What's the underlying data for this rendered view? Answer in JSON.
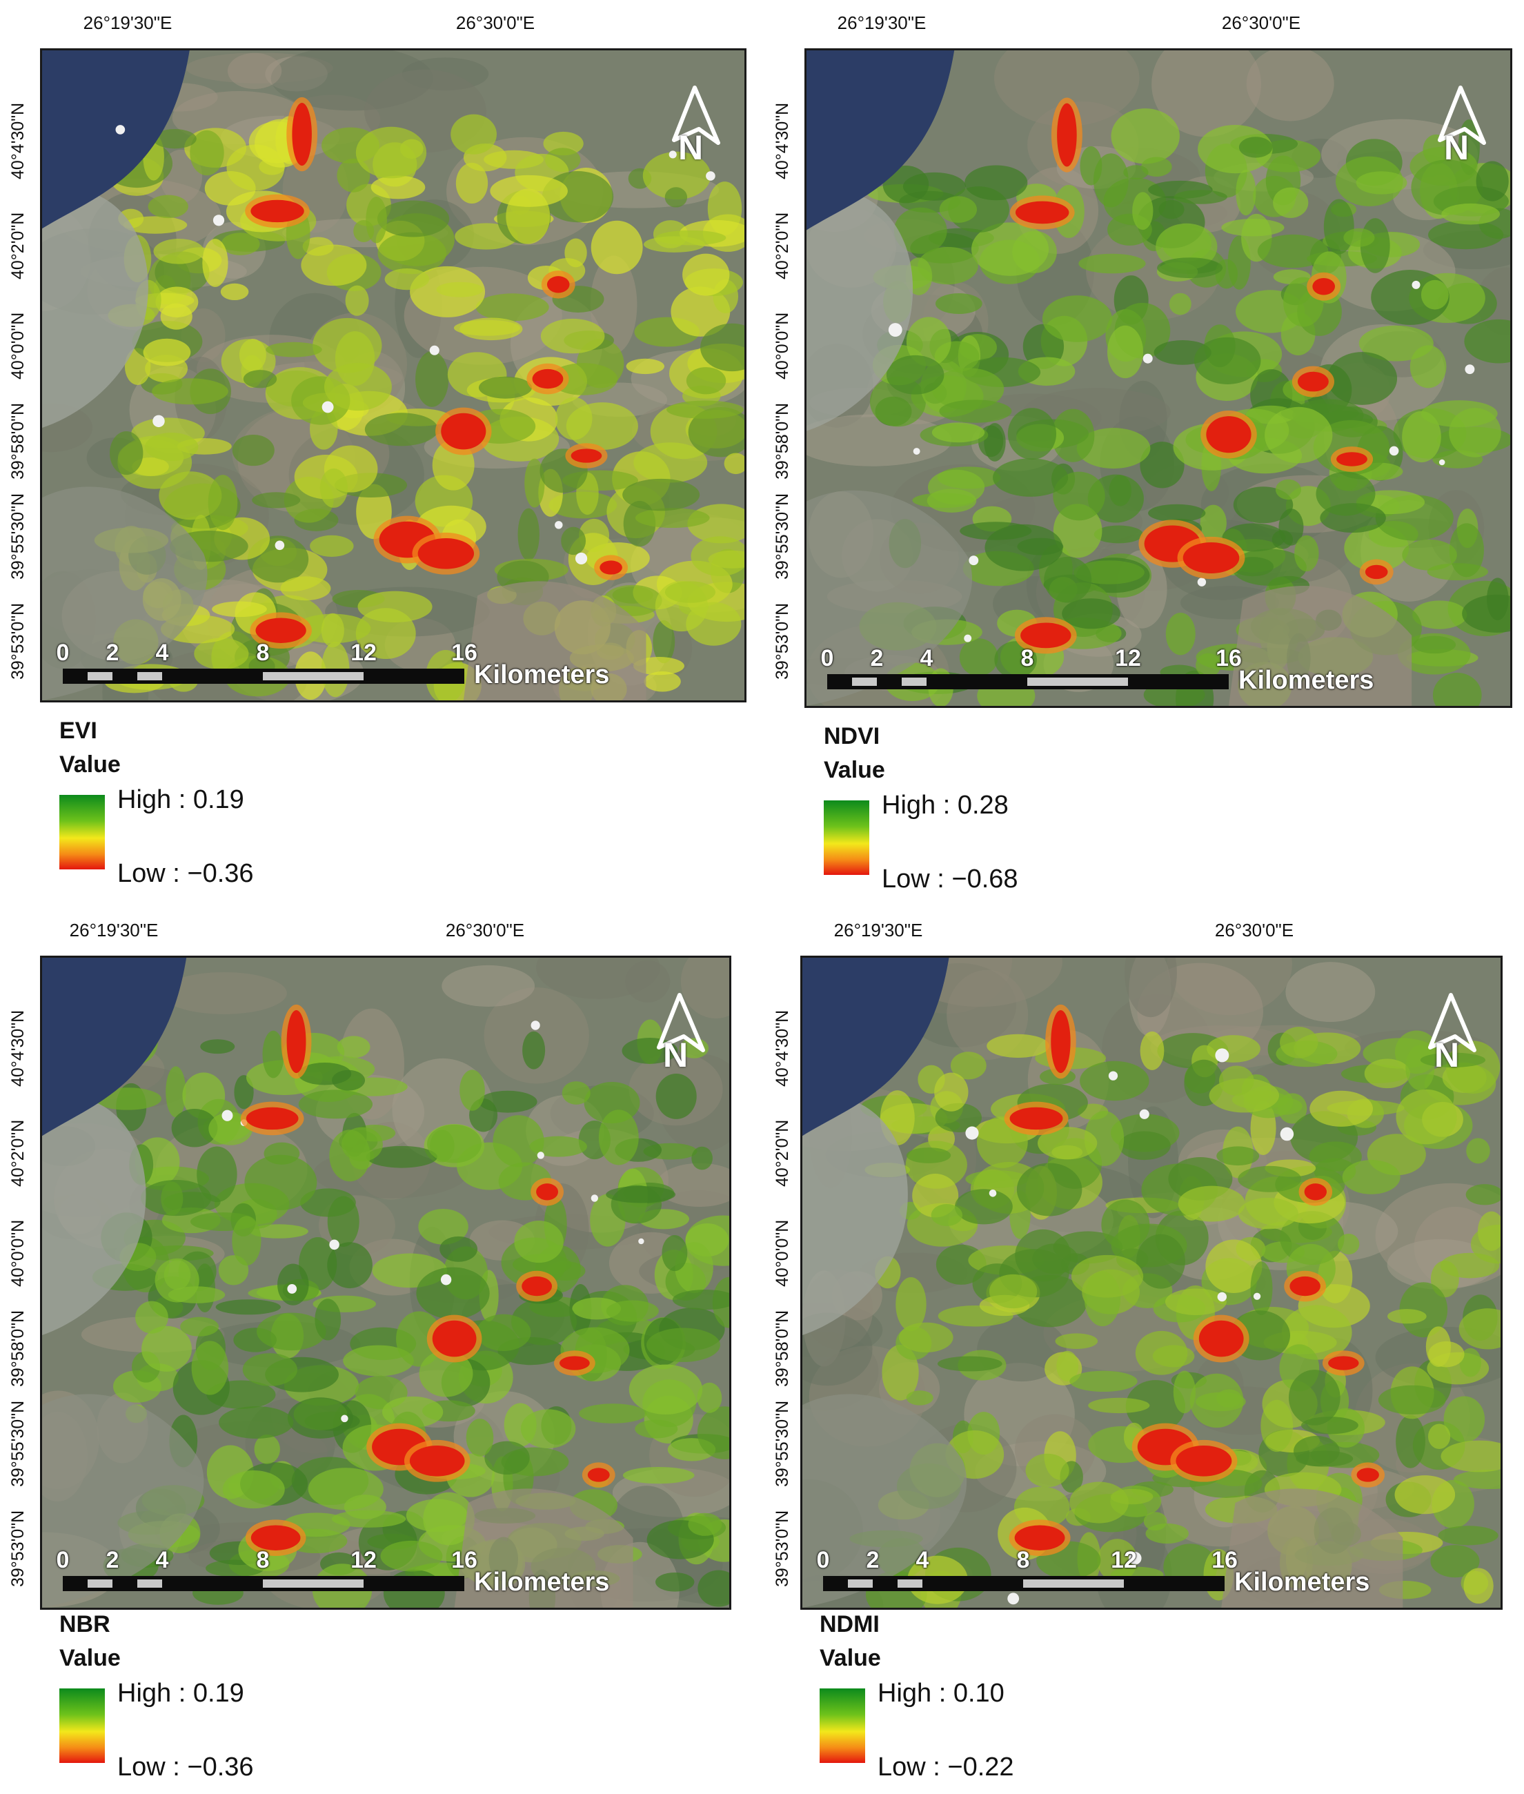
{
  "panels": [
    {
      "index": "EVI",
      "value_label": "Value",
      "high": "High : 0.19",
      "low": "Low : −0.36",
      "tint": "evi"
    },
    {
      "index": "NDVI",
      "value_label": "Value",
      "high": "High : 0.28",
      "low": "Low : −0.68",
      "tint": "green"
    },
    {
      "index": "NBR",
      "value_label": "Value",
      "high": "High : 0.19",
      "low": "Low : −0.36",
      "tint": "green"
    },
    {
      "index": "NDMI",
      "value_label": "Value",
      "high": "High : 0.10",
      "low": "Low : −0.22",
      "tint": "ndmi"
    }
  ],
  "graticule": {
    "lon_labels": [
      "26°19'30\"E",
      "26°30'0\"E"
    ],
    "lat_labels": [
      "40°4'30\"N",
      "40°2'0\"N",
      "40°0'0\"N",
      "39°58'0\"N",
      "39°55'30\"N",
      "39°53'0\"N"
    ]
  },
  "scale_bar": {
    "ticks": [
      "0",
      "2",
      "4",
      "8",
      "12",
      "16"
    ],
    "unit": "Kilometers"
  },
  "north_arrow": {
    "label": "N"
  },
  "colors": {
    "high": "#0c8a1c",
    "mid": "#f3e81b",
    "low": "#e4160e",
    "water": "#2c3d66"
  }
}
